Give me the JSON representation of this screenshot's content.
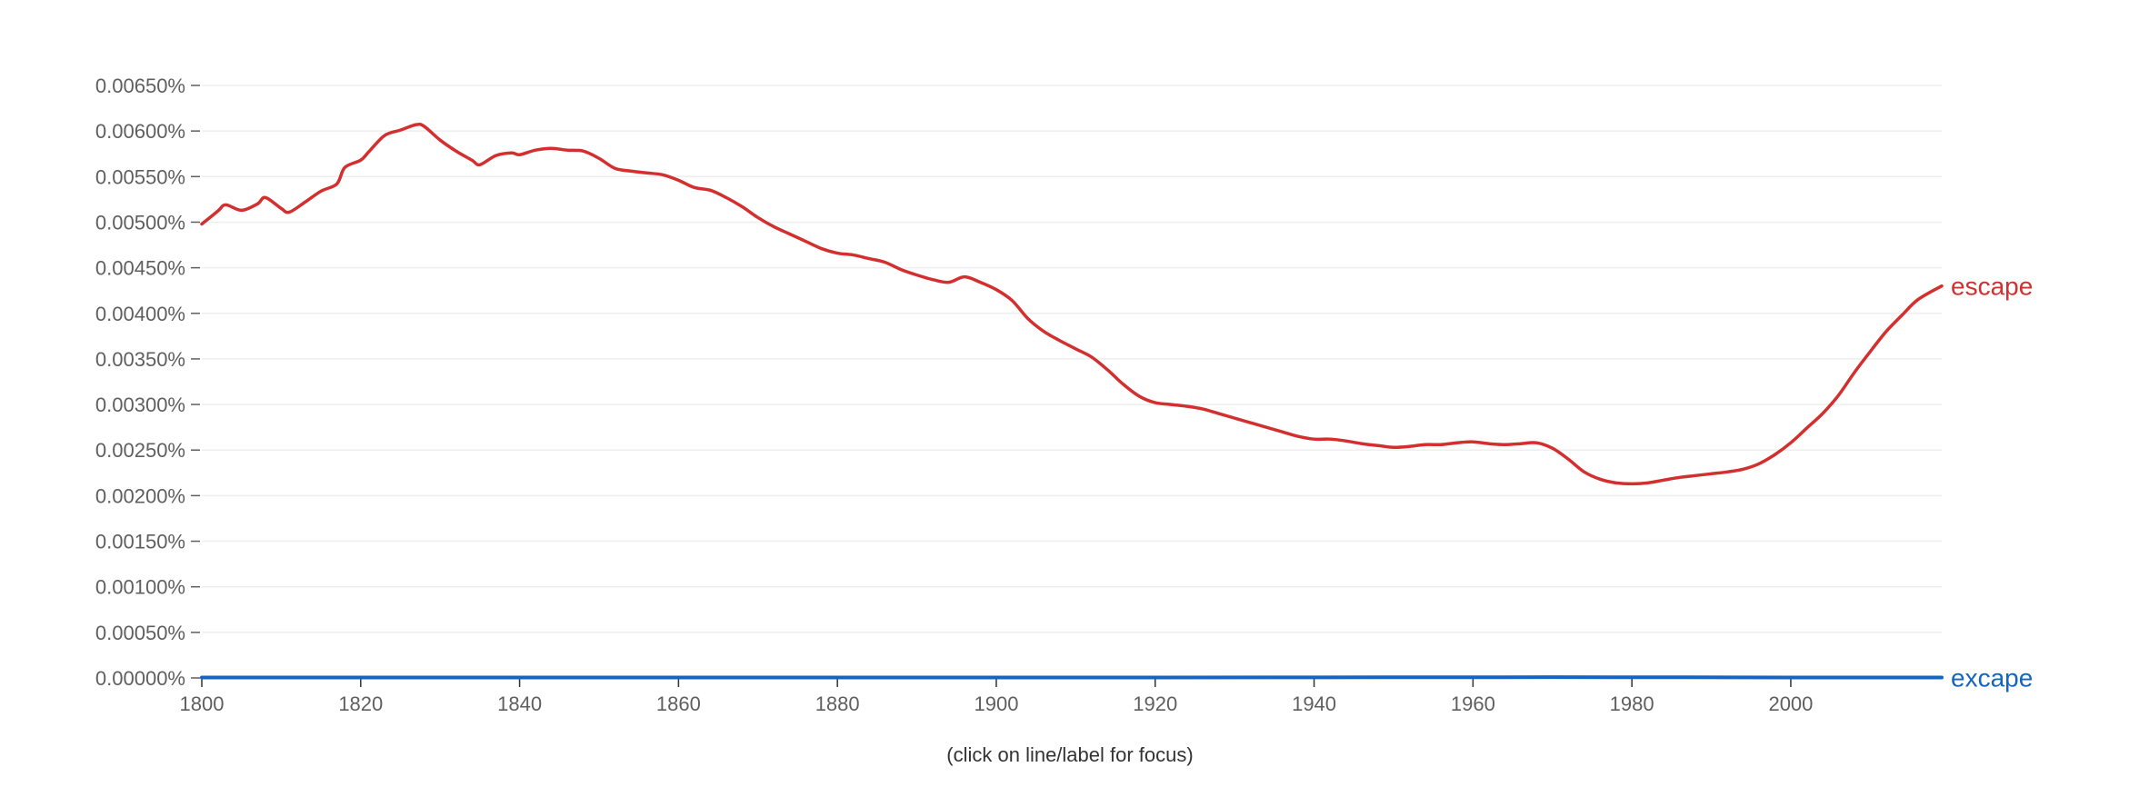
{
  "chart_data": {
    "type": "line",
    "title": "",
    "xlabel": "",
    "ylabel": "",
    "xlim": [
      1800,
      2019
    ],
    "ylim": [
      0,
      0.0065
    ],
    "grid": true,
    "x_ticks": [
      1800,
      1820,
      1840,
      1860,
      1880,
      1900,
      1920,
      1940,
      1960,
      1980,
      2000
    ],
    "y_ticks": [
      0,
      0.0005,
      0.001,
      0.0015,
      0.002,
      0.0025,
      0.003,
      0.0035,
      0.004,
      0.0045,
      0.005,
      0.0055,
      0.006,
      0.0065
    ],
    "y_tick_labels": [
      "0.00000%",
      "0.00050%",
      "0.00100%",
      "0.00150%",
      "0.00200%",
      "0.00250%",
      "0.00300%",
      "0.00350%",
      "0.00400%",
      "0.00450%",
      "0.00500%",
      "0.00550%",
      "0.00600%",
      "0.00650%"
    ],
    "series": [
      {
        "name": "escape",
        "color": "#d32f2f",
        "x": [
          1800,
          1802,
          1803,
          1805,
          1807,
          1808,
          1810,
          1811,
          1813,
          1815,
          1817,
          1818,
          1820,
          1821,
          1823,
          1825,
          1827,
          1828,
          1830,
          1832,
          1834,
          1835,
          1837,
          1839,
          1840,
          1842,
          1844,
          1846,
          1848,
          1850,
          1852,
          1854,
          1856,
          1858,
          1860,
          1862,
          1864,
          1866,
          1868,
          1870,
          1872,
          1874,
          1876,
          1878,
          1880,
          1882,
          1884,
          1886,
          1888,
          1890,
          1892,
          1894,
          1896,
          1898,
          1900,
          1902,
          1904,
          1906,
          1908,
          1910,
          1912,
          1914,
          1916,
          1918,
          1920,
          1922,
          1924,
          1926,
          1928,
          1930,
          1932,
          1934,
          1936,
          1938,
          1940,
          1942,
          1944,
          1946,
          1948,
          1950,
          1952,
          1954,
          1956,
          1958,
          1960,
          1962,
          1964,
          1966,
          1968,
          1970,
          1972,
          1974,
          1976,
          1978,
          1980,
          1982,
          1984,
          1986,
          1988,
          1990,
          1992,
          1994,
          1996,
          1998,
          2000,
          2002,
          2004,
          2006,
          2008,
          2010,
          2012,
          2014,
          2016,
          2019
        ],
        "y": [
          0.00498,
          0.00512,
          0.00519,
          0.00513,
          0.0052,
          0.00527,
          0.00515,
          0.00511,
          0.00522,
          0.00534,
          0.00542,
          0.0056,
          0.00568,
          0.00577,
          0.00595,
          0.00601,
          0.00607,
          0.00605,
          0.0059,
          0.00578,
          0.00568,
          0.00563,
          0.00573,
          0.00576,
          0.00574,
          0.00579,
          0.00581,
          0.00579,
          0.00578,
          0.0057,
          0.00559,
          0.00556,
          0.00554,
          0.00552,
          0.00546,
          0.00538,
          0.00535,
          0.00527,
          0.00517,
          0.00505,
          0.00495,
          0.00487,
          0.00479,
          0.00471,
          0.00466,
          0.00464,
          0.0046,
          0.00456,
          0.00448,
          0.00442,
          0.00437,
          0.00434,
          0.0044,
          0.00434,
          0.00426,
          0.00414,
          0.00394,
          0.0038,
          0.0037,
          0.00361,
          0.00352,
          0.00338,
          0.00322,
          0.00309,
          0.00302,
          0.003,
          0.00298,
          0.00295,
          0.0029,
          0.00285,
          0.0028,
          0.00275,
          0.0027,
          0.00265,
          0.00262,
          0.00262,
          0.0026,
          0.00257,
          0.00255,
          0.00253,
          0.00254,
          0.00256,
          0.00256,
          0.00258,
          0.00259,
          0.00257,
          0.00256,
          0.00257,
          0.00258,
          0.00252,
          0.0024,
          0.00226,
          0.00218,
          0.00214,
          0.00213,
          0.00214,
          0.00217,
          0.0022,
          0.00222,
          0.00224,
          0.00226,
          0.00229,
          0.00235,
          0.00245,
          0.00258,
          0.00274,
          0.0029,
          0.0031,
          0.00335,
          0.00358,
          0.0038,
          0.00398,
          0.00415,
          0.0043
        ]
      },
      {
        "name": "excape",
        "color": "#1565c0",
        "x": [
          1800,
          1900,
          1940,
          1960,
          1980,
          2000,
          2019
        ],
        "y": [
          5e-06,
          5e-06,
          6e-06,
          8e-06,
          8e-06,
          5e-06,
          5e-06
        ]
      }
    ],
    "caption": "(click on line/label for focus)"
  },
  "colors": {
    "grid": "#eeeeee",
    "axis": "#333333",
    "tick_text": "#5f5f5f"
  }
}
